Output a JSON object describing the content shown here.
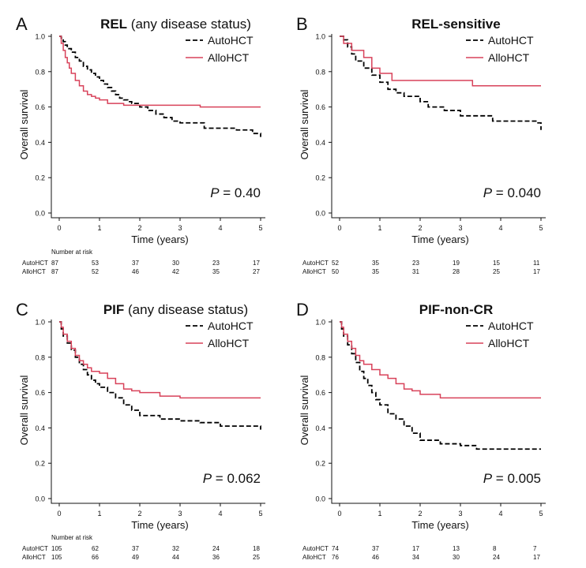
{
  "chart_data": [
    {
      "type": "line",
      "subtype": "kaplan-meier",
      "panel_letter": "A",
      "title_bold": "REL",
      "title_normal": " (any disease status)",
      "xlabel": "Time (years)",
      "ylabel": "Overall survival",
      "xlim": [
        0,
        5
      ],
      "ylim": [
        0,
        1
      ],
      "x_ticks": [
        0,
        1,
        2,
        3,
        4,
        5
      ],
      "y_ticks": [
        "0.0",
        "0.2",
        "0.4",
        "0.6",
        "0.8",
        "1.0"
      ],
      "p_prefix": "P",
      "p_value": " = 0.40",
      "risk_title": "Number at risk",
      "risk_rows": [
        {
          "label": "AutoHCT",
          "values": [
            "87",
            "53",
            "37",
            "30",
            "23",
            "17"
          ]
        },
        {
          "label": "AlloHCT",
          "values": [
            "87",
            "52",
            "46",
            "42",
            "35",
            "27"
          ]
        }
      ],
      "legend_position": "top-right",
      "series": [
        {
          "name": "AutoHCT",
          "style": "dashed",
          "color": "#000000",
          "x": [
            0,
            0.05,
            0.1,
            0.15,
            0.2,
            0.3,
            0.4,
            0.5,
            0.6,
            0.7,
            0.8,
            0.9,
            1.0,
            1.1,
            1.2,
            1.3,
            1.4,
            1.5,
            1.6,
            1.7,
            1.8,
            2.0,
            2.2,
            2.4,
            2.6,
            2.8,
            3.0,
            3.4,
            3.6,
            4.0,
            4.4,
            4.8,
            5.0
          ],
          "y": [
            1.0,
            0.99,
            0.97,
            0.95,
            0.93,
            0.91,
            0.88,
            0.86,
            0.83,
            0.81,
            0.79,
            0.77,
            0.75,
            0.73,
            0.71,
            0.69,
            0.67,
            0.65,
            0.64,
            0.63,
            0.62,
            0.6,
            0.58,
            0.56,
            0.54,
            0.52,
            0.51,
            0.51,
            0.48,
            0.48,
            0.47,
            0.45,
            0.43
          ]
        },
        {
          "name": "AlloHCT",
          "style": "solid",
          "color": "#d8425a",
          "x": [
            0,
            0.05,
            0.1,
            0.15,
            0.2,
            0.25,
            0.3,
            0.4,
            0.5,
            0.6,
            0.7,
            0.8,
            0.9,
            1.0,
            1.2,
            1.4,
            1.6,
            2.0,
            3.0,
            3.5,
            4.0,
            5.0
          ],
          "y": [
            1.0,
            0.96,
            0.92,
            0.88,
            0.85,
            0.82,
            0.79,
            0.75,
            0.72,
            0.69,
            0.67,
            0.66,
            0.65,
            0.64,
            0.62,
            0.62,
            0.61,
            0.61,
            0.61,
            0.6,
            0.6,
            0.6
          ]
        }
      ]
    },
    {
      "type": "line",
      "subtype": "kaplan-meier",
      "panel_letter": "B",
      "title_bold": "REL-sensitive",
      "title_normal": "",
      "xlabel": "Time (years)",
      "ylabel": "Overall survival",
      "xlim": [
        0,
        5
      ],
      "ylim": [
        0,
        1
      ],
      "x_ticks": [
        0,
        1,
        2,
        3,
        4,
        5
      ],
      "y_ticks": [
        "0.0",
        "0.2",
        "0.4",
        "0.6",
        "0.8",
        "1.0"
      ],
      "p_prefix": "P",
      "p_value": " = 0.040",
      "risk_title": "",
      "risk_rows": [
        {
          "label": "AutoHCT",
          "values": [
            "52",
            "35",
            "23",
            "19",
            "15",
            "11"
          ]
        },
        {
          "label": "AlloHCT",
          "values": [
            "50",
            "35",
            "31",
            "28",
            "25",
            "17"
          ]
        }
      ],
      "legend_position": "top-right",
      "series": [
        {
          "name": "AutoHCT",
          "style": "dashed",
          "color": "#000000",
          "x": [
            0,
            0.1,
            0.2,
            0.3,
            0.4,
            0.6,
            0.8,
            1.0,
            1.2,
            1.4,
            1.6,
            2.0,
            2.2,
            2.6,
            3.0,
            3.4,
            3.8,
            4.2,
            4.6,
            4.9,
            5.0
          ],
          "y": [
            1.0,
            0.98,
            0.94,
            0.9,
            0.86,
            0.82,
            0.78,
            0.74,
            0.7,
            0.68,
            0.66,
            0.63,
            0.6,
            0.58,
            0.55,
            0.55,
            0.52,
            0.52,
            0.52,
            0.51,
            0.47
          ]
        },
        {
          "name": "AlloHCT",
          "style": "solid",
          "color": "#d8425a",
          "x": [
            0,
            0.1,
            0.3,
            0.6,
            0.8,
            1.0,
            1.3,
            2.5,
            3.3,
            5.0
          ],
          "y": [
            1.0,
            0.96,
            0.92,
            0.88,
            0.82,
            0.79,
            0.75,
            0.75,
            0.72,
            0.72
          ]
        }
      ]
    },
    {
      "type": "line",
      "subtype": "kaplan-meier",
      "panel_letter": "C",
      "title_bold": "PIF",
      "title_normal": " (any disease status)",
      "xlabel": "Time (years)",
      "ylabel": "Overall survival",
      "xlim": [
        0,
        5
      ],
      "ylim": [
        0,
        1
      ],
      "x_ticks": [
        0,
        1,
        2,
        3,
        4,
        5
      ],
      "y_ticks": [
        "0.0",
        "0.2",
        "0.4",
        "0.6",
        "0.8",
        "1.0"
      ],
      "p_prefix": "P",
      "p_value": " = 0.062",
      "risk_title": "Number at risk",
      "risk_rows": [
        {
          "label": "AutoHCT",
          "values": [
            "105",
            "62",
            "37",
            "32",
            "24",
            "18"
          ]
        },
        {
          "label": "AlloHCT",
          "values": [
            "105",
            "66",
            "49",
            "44",
            "36",
            "25"
          ]
        }
      ],
      "legend_position": "top-right",
      "series": [
        {
          "name": "AutoHCT",
          "style": "dashed",
          "color": "#000000",
          "x": [
            0,
            0.05,
            0.1,
            0.2,
            0.3,
            0.4,
            0.5,
            0.6,
            0.7,
            0.8,
            0.9,
            1.0,
            1.2,
            1.4,
            1.6,
            1.8,
            2.0,
            2.5,
            3.0,
            3.5,
            4.0,
            4.5,
            5.0
          ],
          "y": [
            1.0,
            0.96,
            0.92,
            0.88,
            0.84,
            0.8,
            0.76,
            0.73,
            0.7,
            0.67,
            0.65,
            0.63,
            0.6,
            0.57,
            0.53,
            0.5,
            0.47,
            0.45,
            0.44,
            0.43,
            0.41,
            0.41,
            0.39
          ]
        },
        {
          "name": "AlloHCT",
          "style": "solid",
          "color": "#d8425a",
          "x": [
            0,
            0.05,
            0.1,
            0.2,
            0.3,
            0.4,
            0.5,
            0.6,
            0.7,
            0.8,
            1.0,
            1.2,
            1.4,
            1.6,
            1.8,
            2.0,
            2.5,
            3.0,
            5.0
          ],
          "y": [
            1.0,
            0.97,
            0.93,
            0.89,
            0.85,
            0.81,
            0.78,
            0.76,
            0.74,
            0.72,
            0.71,
            0.68,
            0.65,
            0.62,
            0.61,
            0.6,
            0.58,
            0.57,
            0.57
          ]
        }
      ]
    },
    {
      "type": "line",
      "subtype": "kaplan-meier",
      "panel_letter": "D",
      "title_bold": "PIF-non-CR",
      "title_normal": "",
      "xlabel": "Time (years)",
      "ylabel": "Overall survival",
      "xlim": [
        0,
        5
      ],
      "ylim": [
        0,
        1
      ],
      "x_ticks": [
        0,
        1,
        2,
        3,
        4,
        5
      ],
      "y_ticks": [
        "0.0",
        "0.2",
        "0.4",
        "0.6",
        "0.8",
        "1.0"
      ],
      "p_prefix": "P",
      "p_value": " = 0.005",
      "risk_title": "",
      "risk_rows": [
        {
          "label": "AutoHCT",
          "values": [
            "74",
            "37",
            "17",
            "13",
            "8",
            "7"
          ]
        },
        {
          "label": "AlloHCT",
          "values": [
            "76",
            "46",
            "34",
            "30",
            "24",
            "17"
          ]
        }
      ],
      "legend_position": "top-right",
      "series": [
        {
          "name": "AutoHCT",
          "style": "dashed",
          "color": "#000000",
          "x": [
            0,
            0.05,
            0.1,
            0.2,
            0.3,
            0.4,
            0.5,
            0.6,
            0.7,
            0.8,
            0.9,
            1.0,
            1.2,
            1.4,
            1.6,
            1.8,
            2.0,
            2.5,
            3.0,
            3.4,
            4.0,
            5.0
          ],
          "y": [
            1.0,
            0.96,
            0.92,
            0.87,
            0.82,
            0.77,
            0.72,
            0.68,
            0.64,
            0.6,
            0.56,
            0.53,
            0.48,
            0.45,
            0.41,
            0.37,
            0.33,
            0.31,
            0.3,
            0.28,
            0.28,
            0.28
          ]
        },
        {
          "name": "AlloHCT",
          "style": "solid",
          "color": "#d8425a",
          "x": [
            0,
            0.05,
            0.1,
            0.2,
            0.3,
            0.4,
            0.5,
            0.6,
            0.8,
            1.0,
            1.2,
            1.4,
            1.6,
            1.8,
            2.0,
            2.5,
            3.0,
            5.0
          ],
          "y": [
            1.0,
            0.97,
            0.93,
            0.89,
            0.85,
            0.81,
            0.78,
            0.76,
            0.73,
            0.7,
            0.68,
            0.65,
            0.62,
            0.61,
            0.59,
            0.57,
            0.57,
            0.57
          ]
        }
      ]
    }
  ]
}
